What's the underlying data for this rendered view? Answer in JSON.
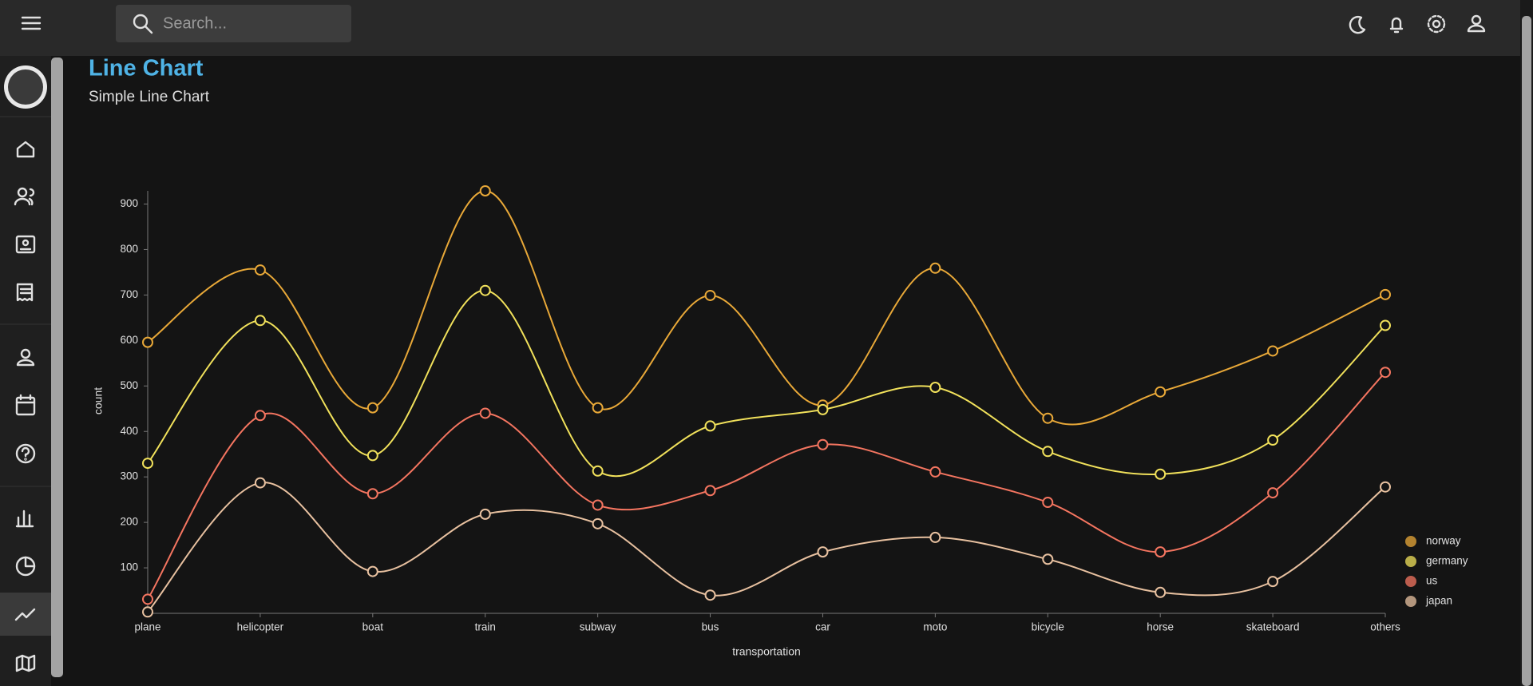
{
  "search_placeholder": "Search...",
  "chart_data": {
    "type": "line",
    "title": "Line Chart",
    "subtitle": "Simple Line Chart",
    "x_label": "transportation",
    "y_label": "count",
    "categories": [
      "plane",
      "helicopter",
      "boat",
      "train",
      "subway",
      "bus",
      "car",
      "moto",
      "bicycle",
      "horse",
      "skateboard",
      "others"
    ],
    "series": [
      {
        "name": "norway",
        "color": "#e8a838",
        "values": [
          596,
          755,
          452,
          929,
          452,
          699,
          458,
          759,
          429,
          487,
          577,
          701
        ]
      },
      {
        "name": "germany",
        "color": "#f1e15b",
        "values": [
          330,
          644,
          347,
          710,
          313,
          412,
          448,
          497,
          356,
          306,
          381,
          633
        ]
      },
      {
        "name": "us",
        "color": "#f47560",
        "values": [
          31,
          435,
          263,
          440,
          238,
          270,
          371,
          311,
          244,
          135,
          265,
          530
        ]
      },
      {
        "name": "japan",
        "color": "#e8c1a0",
        "values": [
          3,
          287,
          92,
          218,
          197,
          40,
          135,
          167,
          119,
          46,
          70,
          278
        ]
      }
    ],
    "ylim": [
      0,
      929
    ],
    "yticks": [
      100,
      200,
      300,
      400,
      500,
      600,
      700,
      800,
      900
    ],
    "curve": "catmull-rom",
    "legend": "bottom-right"
  }
}
